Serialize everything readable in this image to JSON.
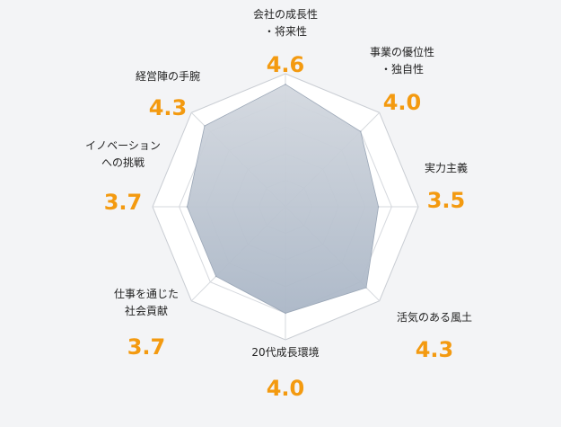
{
  "chart_data": {
    "type": "radar",
    "max": 5,
    "grid_levels": 5,
    "colors": {
      "area": "#b9c3d0",
      "grid": "#d6d9de",
      "outer_fill": "#ffffff",
      "value": "#f39a10"
    },
    "axes": [
      {
        "label_lines": [
          "会社の成長性",
          "・将来性"
        ],
        "value": 4.6,
        "value_text": "4.6"
      },
      {
        "label_lines": [
          "事業の優位性",
          "・独自性"
        ],
        "value": 4.0,
        "value_text": "4.0"
      },
      {
        "label_lines": [
          "実力主義"
        ],
        "value": 3.5,
        "value_text": "3.5"
      },
      {
        "label_lines": [
          "活気のある風土"
        ],
        "value": 4.3,
        "value_text": "4.3"
      },
      {
        "label_lines": [
          "20代成長環境"
        ],
        "value": 4.0,
        "value_text": "4.0"
      },
      {
        "label_lines": [
          "仕事を通じた",
          "社会貢献"
        ],
        "value": 3.7,
        "value_text": "3.7"
      },
      {
        "label_lines": [
          "イノベーション",
          "への挑戦"
        ],
        "value": 3.7,
        "value_text": "3.7"
      },
      {
        "label_lines": [
          "経営陣の手腕"
        ],
        "value": 4.3,
        "value_text": "4.3"
      }
    ]
  }
}
